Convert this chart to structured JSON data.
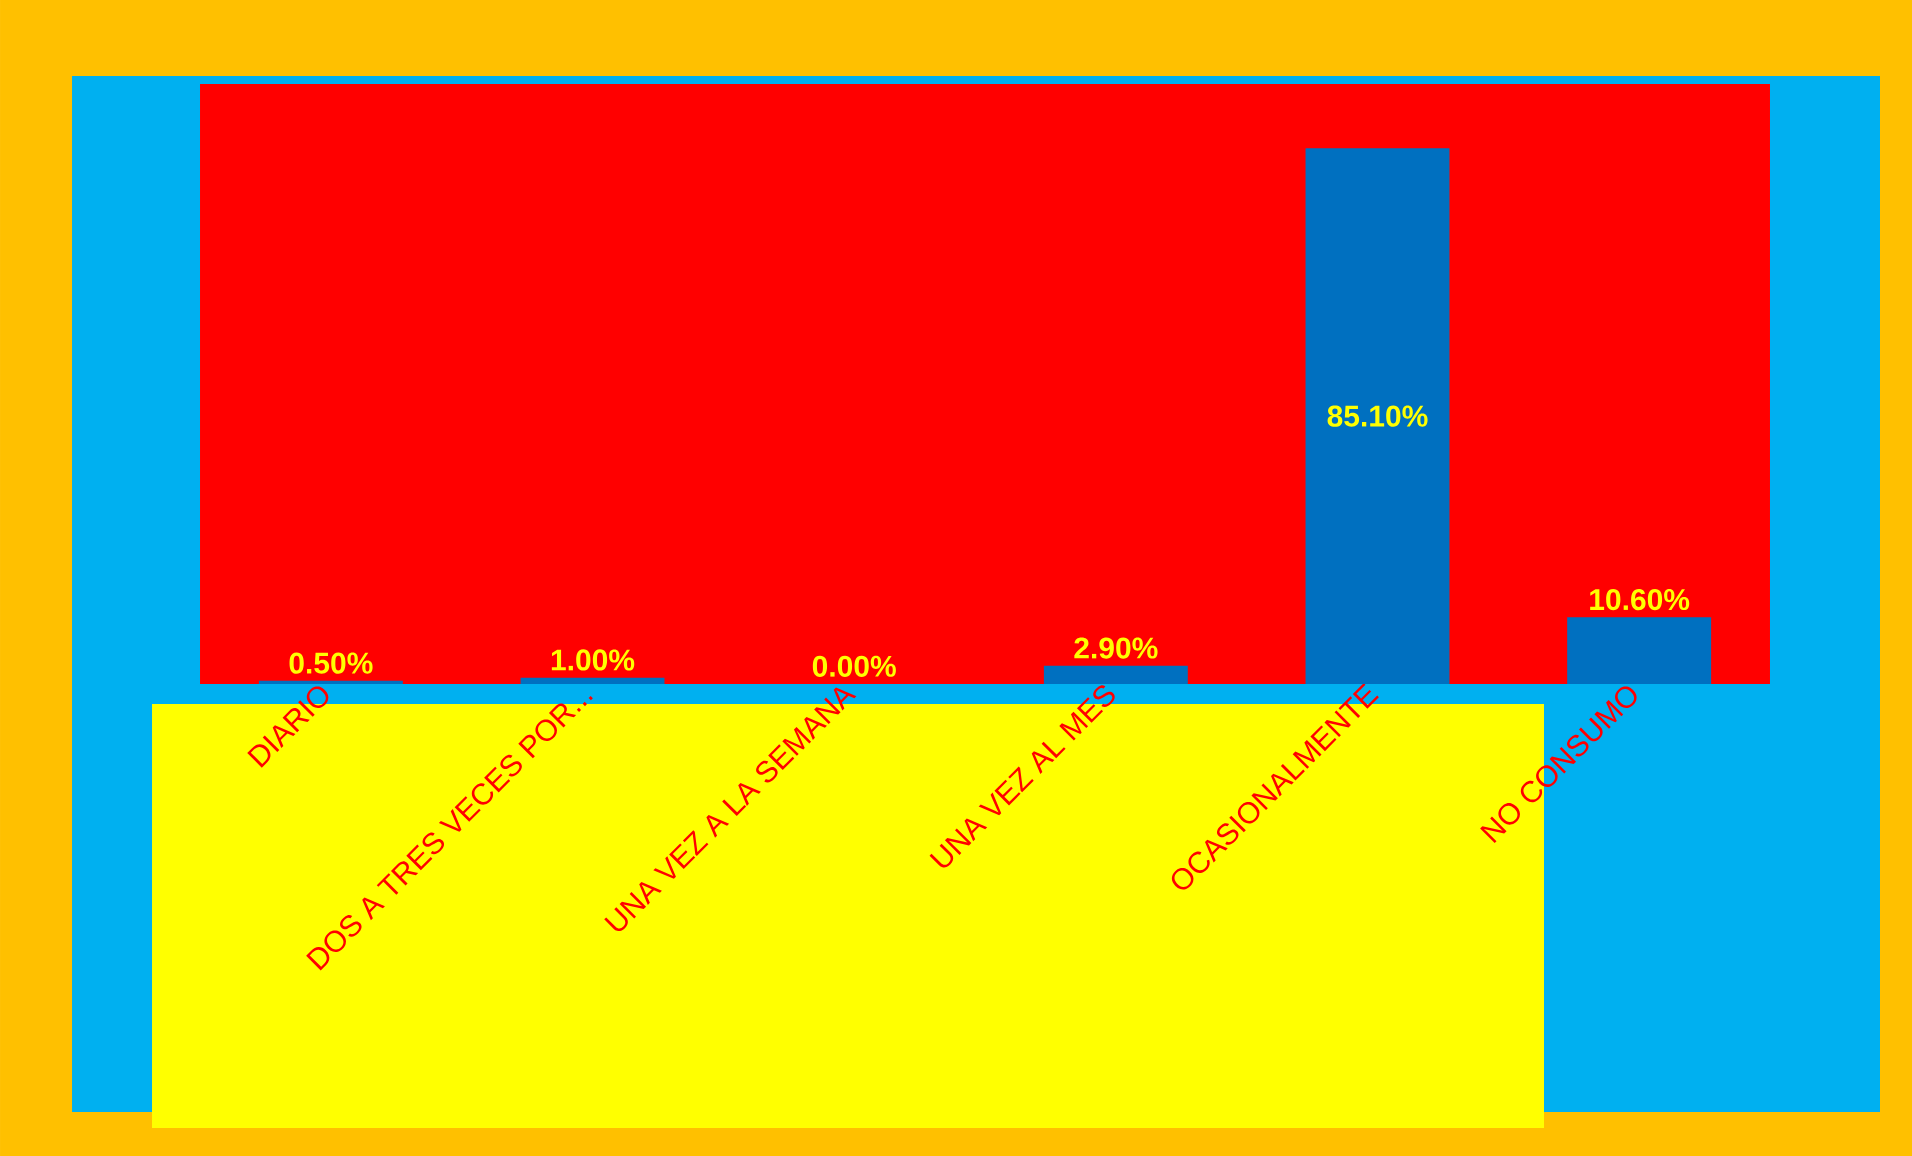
{
  "chart_data": {
    "type": "bar",
    "categories": [
      "DIARIO",
      "DOS A TRES VECES POR...",
      "UNA VEZ A LA SEMANA",
      "UNA VEZ AL MES",
      "OCASIONALMENTE",
      "NO CONSUMO"
    ],
    "values": [
      0.5,
      1.0,
      0.0,
      2.9,
      85.1,
      10.6
    ],
    "value_labels": [
      "0.50%",
      "1.00%",
      "0.00%",
      "2.90%",
      "85.10%",
      "10.60%"
    ],
    "color": "#0070c0"
  }
}
